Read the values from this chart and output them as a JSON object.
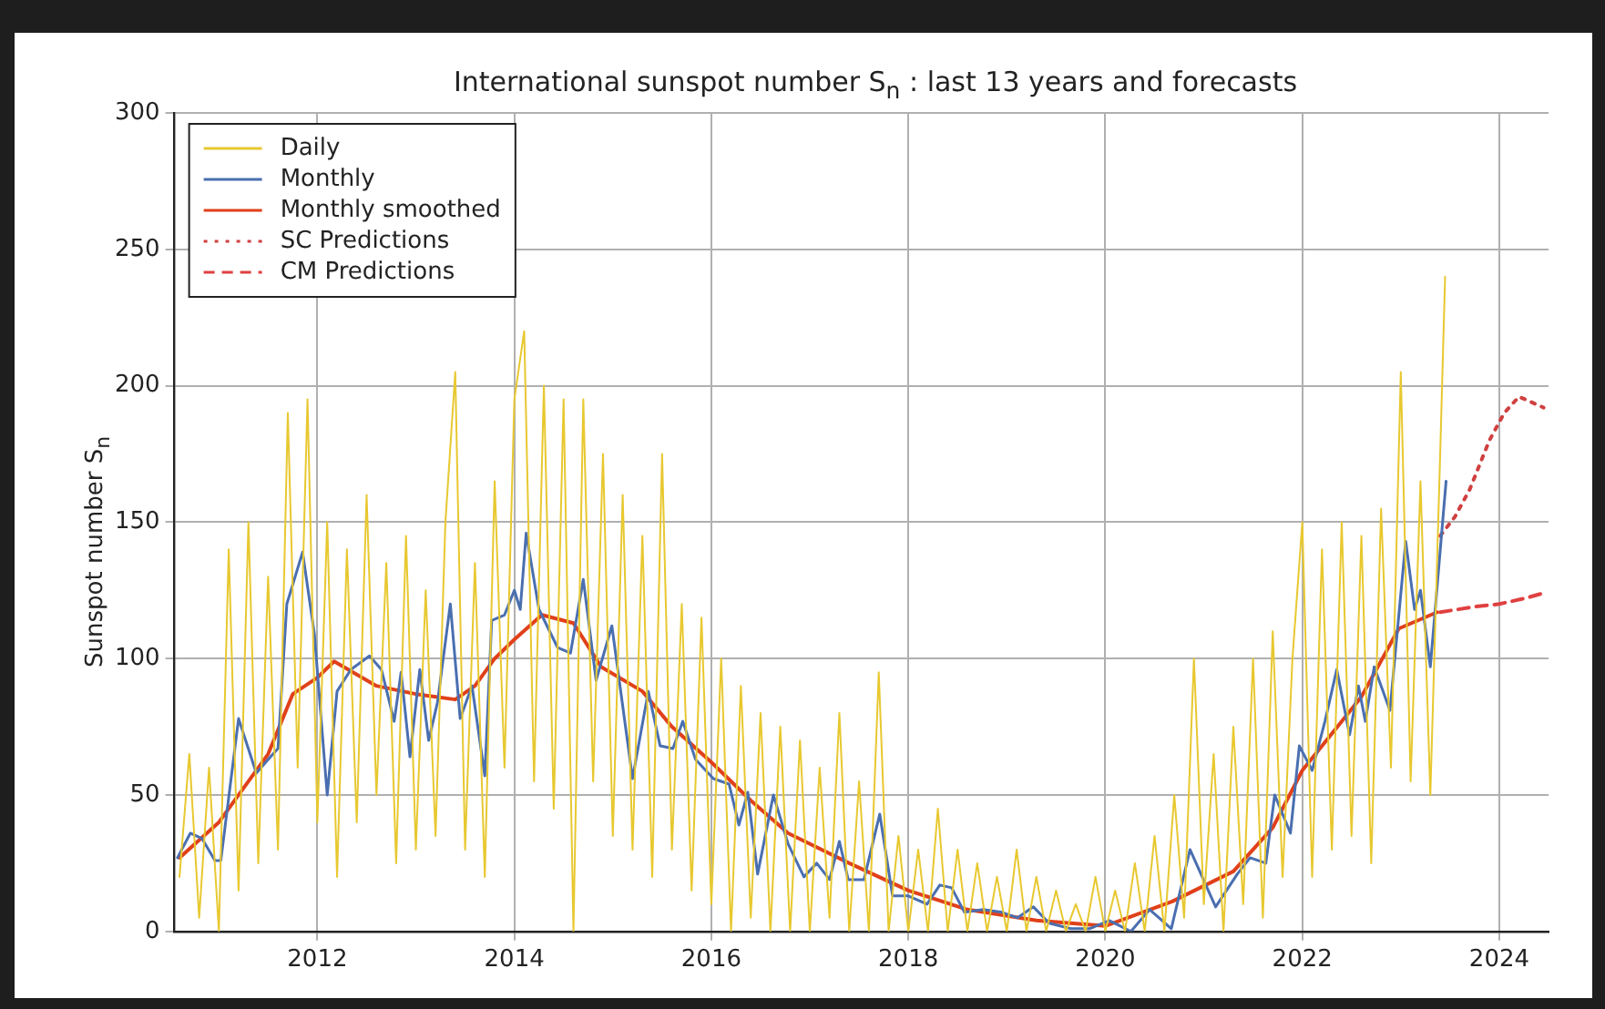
{
  "chart_data": {
    "type": "line",
    "title": "International sunspot number S$_{n}$ : last 13 years and forecasts",
    "ylabel": "Sunspot number S$_{n}$",
    "xlim": [
      2010.55,
      2024.5
    ],
    "xticks": [
      2012,
      2014,
      2016,
      2018,
      2020,
      2022,
      2024
    ],
    "ylim": [
      0,
      300
    ],
    "yticks": [
      0,
      50,
      100,
      150,
      200,
      250,
      300
    ],
    "grid": true,
    "legend": "top left",
    "marker": "none",
    "series": [
      {
        "name": "Daily",
        "color": "#e8c830",
        "line_style": "solid",
        "x": [
          2010.6,
          2010.7,
          2010.8,
          2010.9,
          2011.0,
          2011.1,
          2011.2,
          2011.3,
          2011.4,
          2011.5,
          2011.6,
          2011.7,
          2011.8,
          2011.9,
          2012.0,
          2012.1,
          2012.2,
          2012.3,
          2012.4,
          2012.5,
          2012.6,
          2012.7,
          2012.8,
          2012.9,
          2013.0,
          2013.1,
          2013.2,
          2013.3,
          2013.4,
          2013.5,
          2013.6,
          2013.7,
          2013.8,
          2013.9,
          2014.0,
          2014.1,
          2014.2,
          2014.3,
          2014.4,
          2014.5,
          2014.6,
          2014.7,
          2014.8,
          2014.9,
          2015.0,
          2015.1,
          2015.2,
          2015.3,
          2015.4,
          2015.5,
          2015.6,
          2015.7,
          2015.8,
          2015.9,
          2016.0,
          2016.1,
          2016.2,
          2016.3,
          2016.4,
          2016.5,
          2016.6,
          2016.7,
          2016.8,
          2016.9,
          2017.0,
          2017.1,
          2017.2,
          2017.3,
          2017.4,
          2017.5,
          2017.6,
          2017.7,
          2017.8,
          2017.9,
          2018.0,
          2018.1,
          2018.2,
          2018.3,
          2018.4,
          2018.5,
          2018.6,
          2018.7,
          2018.8,
          2018.9,
          2019.0,
          2019.1,
          2019.2,
          2019.3,
          2019.4,
          2019.5,
          2019.6,
          2019.7,
          2019.8,
          2019.9,
          2020.0,
          2020.1,
          2020.2,
          2020.3,
          2020.4,
          2020.5,
          2020.6,
          2020.7,
          2020.8,
          2020.9,
          2021.0,
          2021.1,
          2021.2,
          2021.3,
          2021.4,
          2021.5,
          2021.6,
          2021.7,
          2021.8,
          2021.9,
          2022.0,
          2022.1,
          2022.2,
          2022.3,
          2022.4,
          2022.5,
          2022.6,
          2022.7,
          2022.8,
          2022.9,
          2023.0,
          2023.1,
          2023.2,
          2023.3,
          2023.4,
          2023.45
        ],
        "values": [
          20,
          65,
          5,
          60,
          0,
          140,
          15,
          150,
          25,
          130,
          30,
          190,
          60,
          195,
          40,
          150,
          20,
          140,
          40,
          160,
          50,
          135,
          25,
          145,
          30,
          125,
          35,
          150,
          205,
          30,
          135,
          20,
          165,
          60,
          195,
          220,
          55,
          200,
          45,
          195,
          0,
          195,
          55,
          175,
          35,
          160,
          30,
          145,
          20,
          175,
          30,
          120,
          15,
          115,
          10,
          100,
          0,
          90,
          5,
          80,
          0,
          75,
          0,
          70,
          0,
          60,
          5,
          80,
          0,
          55,
          0,
          95,
          0,
          35,
          0,
          30,
          0,
          45,
          0,
          30,
          0,
          25,
          0,
          20,
          0,
          30,
          0,
          20,
          0,
          15,
          0,
          10,
          0,
          20,
          0,
          15,
          0,
          25,
          0,
          35,
          0,
          50,
          5,
          100,
          10,
          65,
          0,
          75,
          10,
          100,
          5,
          110,
          20,
          100,
          150,
          20,
          140,
          30,
          150,
          35,
          145,
          25,
          155,
          60,
          205,
          55,
          165,
          50,
          175,
          240
        ]
      },
      {
        "name": "Monthly",
        "color": "#4a6fb0",
        "line_style": "solid",
        "x": [
          2010.58,
          2010.71,
          2010.83,
          2010.96,
          2011.02,
          2011.2,
          2011.38,
          2011.5,
          2011.6,
          2011.69,
          2011.85,
          2011.97,
          2012.1,
          2012.2,
          2012.34,
          2012.53,
          2012.65,
          2012.78,
          2012.85,
          2012.94,
          2013.04,
          2013.13,
          2013.22,
          2013.35,
          2013.45,
          2013.57,
          2013.7,
          2013.77,
          2013.9,
          2014.0,
          2014.06,
          2014.12,
          2014.25,
          2014.44,
          2014.57,
          2014.7,
          2014.83,
          2014.99,
          2015.2,
          2015.36,
          2015.48,
          2015.61,
          2015.71,
          2015.84,
          2016.02,
          2016.18,
          2016.28,
          2016.37,
          2016.47,
          2016.63,
          2016.78,
          2016.94,
          2017.07,
          2017.2,
          2017.3,
          2017.39,
          2017.55,
          2017.71,
          2017.84,
          2018.0,
          2018.19,
          2018.32,
          2018.44,
          2018.57,
          2018.76,
          2018.95,
          2019.11,
          2019.27,
          2019.43,
          2019.65,
          2019.84,
          2020.04,
          2020.26,
          2020.45,
          2020.67,
          2020.86,
          2021.12,
          2021.34,
          2021.47,
          2021.63,
          2021.72,
          2021.88,
          2021.97,
          2022.1,
          2022.23,
          2022.35,
          2022.48,
          2022.57,
          2022.64,
          2022.73,
          2022.89,
          2023.05,
          2023.14,
          2023.2,
          2023.3,
          2023.46
        ],
        "values": [
          27,
          36,
          34,
          26,
          26,
          78,
          58,
          63,
          67,
          120,
          139,
          109,
          50,
          88,
          96,
          101,
          96,
          77,
          95,
          64,
          96,
          70,
          84,
          120,
          78,
          90,
          57,
          114,
          116,
          125,
          118,
          146,
          118,
          104,
          102,
          129,
          92,
          112,
          56,
          88,
          68,
          67,
          77,
          63,
          56,
          54,
          39,
          51,
          21,
          50,
          32,
          20,
          25,
          19,
          33,
          19,
          19,
          43,
          13,
          13,
          10,
          17,
          16,
          7,
          8,
          7,
          5,
          9,
          3,
          1,
          1,
          4,
          0,
          8,
          1,
          30,
          9,
          21,
          27,
          25,
          50,
          36,
          68,
          59,
          77,
          96,
          72,
          90,
          77,
          97,
          81,
          143,
          118,
          125,
          97,
          165
        ]
      },
      {
        "name": "Monthly smoothed",
        "color": "#e0401a",
        "line_style": "solid",
        "x": [
          2010.6,
          2011.0,
          2011.5,
          2011.75,
          2012.0,
          2012.17,
          2012.6,
          2013.0,
          2013.4,
          2013.6,
          2013.8,
          2014.0,
          2014.28,
          2014.6,
          2014.88,
          2015.3,
          2015.6,
          2016.0,
          2016.4,
          2016.78,
          2017.4,
          2018.0,
          2018.6,
          2019.3,
          2020.0,
          2020.68,
          2021.3,
          2021.7,
          2022.0,
          2022.6,
          2022.98,
          2023.37
        ],
        "values": [
          27,
          40,
          65,
          87,
          93,
          99,
          90,
          87,
          85,
          90,
          100,
          107,
          116,
          113,
          97,
          88,
          75,
          62,
          48,
          36,
          25,
          15,
          8,
          4,
          2,
          11,
          22,
          38,
          59,
          86,
          111,
          117
        ]
      },
      {
        "name": "SC Predictions",
        "color": "#d04040",
        "line_style": "dotted",
        "x": [
          2023.4,
          2023.55,
          2023.7,
          2023.9,
          2024.05,
          2024.2,
          2024.45
        ],
        "values": [
          145,
          152,
          162,
          180,
          190,
          196,
          192
        ]
      },
      {
        "name": "CM Predictions",
        "color": "#e04040",
        "line_style": "dashed",
        "x": [
          2023.4,
          2023.75,
          2024.0,
          2024.25,
          2024.45
        ],
        "values": [
          117,
          119,
          120,
          122,
          124
        ]
      }
    ]
  }
}
